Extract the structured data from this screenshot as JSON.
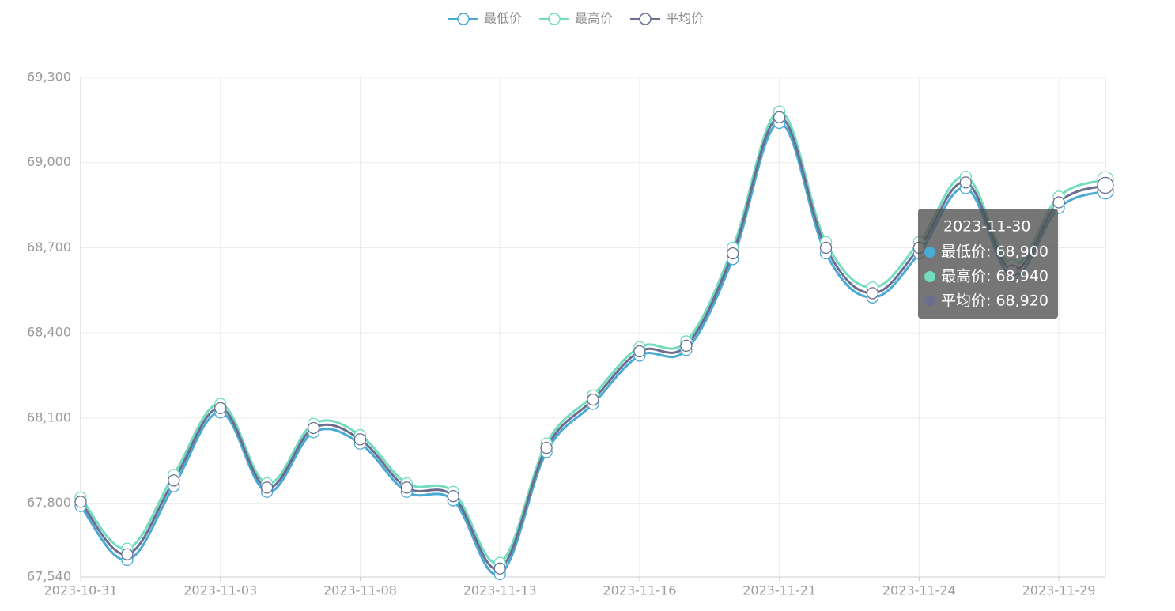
{
  "chart_data": {
    "type": "line",
    "categories": [
      "2023-10-31",
      null,
      null,
      "2023-11-03",
      null,
      null,
      "2023-11-08",
      null,
      null,
      "2023-11-13",
      null,
      null,
      "2023-11-16",
      null,
      null,
      "2023-11-21",
      null,
      null,
      "2023-11-24",
      null,
      null,
      "2023-11-29",
      null
    ],
    "series": [
      {
        "name": "最低价",
        "color": "#4aaad6",
        "values": [
          67790,
          67600,
          67860,
          68120,
          67840,
          68050,
          68010,
          67840,
          67810,
          67550,
          67980,
          68150,
          68320,
          68340,
          68660,
          69140,
          68680,
          68525,
          68680,
          68910,
          68600,
          68840,
          68900
        ]
      },
      {
        "name": "最高价",
        "color": "#72dcbf",
        "values": [
          67820,
          67640,
          67900,
          68150,
          67870,
          68080,
          68040,
          67870,
          67840,
          67590,
          68010,
          68180,
          68350,
          68370,
          68700,
          69180,
          68720,
          68560,
          68720,
          68950,
          68640,
          68880,
          68940
        ]
      },
      {
        "name": "平均价",
        "color": "#6b6e8f",
        "values": [
          67805,
          67620,
          67880,
          68135,
          67855,
          68065,
          68025,
          67855,
          67825,
          67570,
          67995,
          68165,
          68335,
          68355,
          68680,
          69160,
          68700,
          68540,
          68700,
          68930,
          68620,
          68860,
          68920
        ]
      }
    ],
    "ylim": [
      67540,
      69300
    ],
    "yticks": [
      {
        "value": 67540,
        "label": "67,540"
      },
      {
        "value": 67800,
        "label": "67,800"
      },
      {
        "value": 68100,
        "label": "68,100"
      },
      {
        "value": 68400,
        "label": "68,400"
      },
      {
        "value": 68700,
        "label": "68,700"
      },
      {
        "value": 69000,
        "label": "69,000"
      },
      {
        "value": 69300,
        "label": "69,300"
      }
    ],
    "grid": true,
    "tooltip": {
      "title": "2023-11-30",
      "items": [
        "最低价: 68,900",
        "最高价: 68,940",
        "平均价: 68,920"
      ]
    }
  }
}
